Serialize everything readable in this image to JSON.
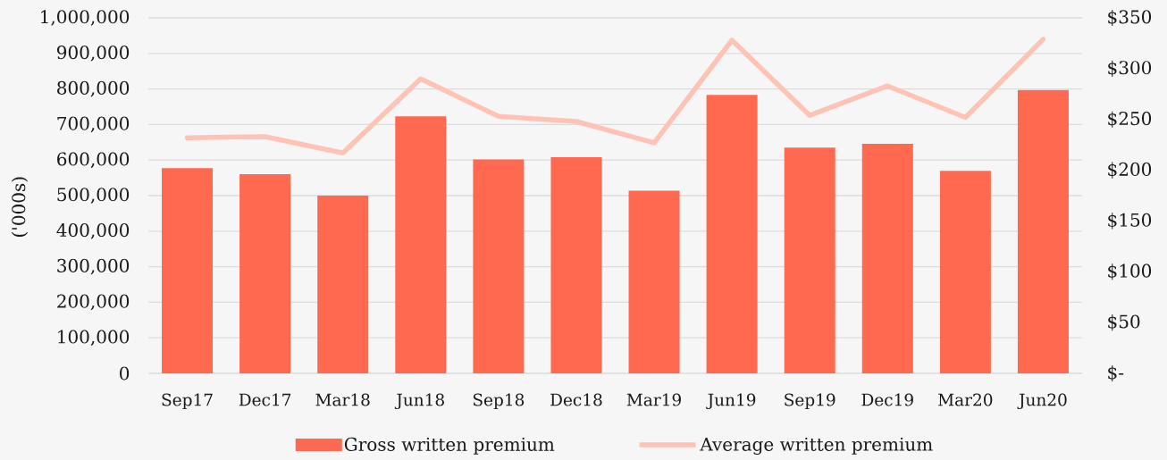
{
  "chart_data": {
    "type": "bar",
    "categories": [
      "Sep17",
      "Dec17",
      "Mar18",
      "Jun18",
      "Sep18",
      "Dec18",
      "Mar19",
      "Jun19",
      "Sep19",
      "Dec19",
      "Mar20",
      "Jun20"
    ],
    "ylabel": "('000s)",
    "ylim": [
      0,
      1000000
    ],
    "yticks": [
      0,
      {
        "value": 100000,
        "label": "100,000"
      },
      {
        "value": 200000,
        "label": "200,000"
      },
      {
        "value": 300000,
        "label": "300,000"
      },
      {
        "value": 400000,
        "label": "400,000"
      },
      {
        "value": 500000,
        "label": "500,000"
      },
      {
        "value": 600000,
        "label": "600,000"
      },
      {
        "value": 700000,
        "label": "700,000"
      },
      {
        "value": 800000,
        "label": "800,000"
      },
      {
        "value": 900000,
        "label": "900,000"
      },
      {
        "value": 1000000,
        "label": "1,000,000"
      }
    ],
    "y2lim": [
      0,
      350
    ],
    "y2ticks": [
      {
        "value": 0,
        "label": "$-"
      },
      {
        "value": 50,
        "label": "$50"
      },
      {
        "value": 100,
        "label": "$100"
      },
      {
        "value": 150,
        "label": "$150"
      },
      {
        "value": 200,
        "label": "$200"
      },
      {
        "value": 250,
        "label": "$250"
      },
      {
        "value": 300,
        "label": "$300"
      },
      {
        "value": 350,
        "label": "$350"
      }
    ],
    "series": [
      {
        "name": "Gross written premium",
        "color": "#ff6950",
        "values": [
          577000,
          560000,
          500000,
          723000,
          602000,
          608000,
          514000,
          783000,
          635000,
          646000,
          570000,
          797000
        ]
      },
      {
        "name": "Average written premium",
        "type": "line",
        "axis": "y2",
        "color": "#ffc3b5",
        "values": [
          232,
          233,
          217,
          290,
          253,
          248,
          227,
          328,
          254,
          283,
          252,
          329
        ]
      }
    ],
    "grid": "y",
    "legend": "bottom"
  }
}
